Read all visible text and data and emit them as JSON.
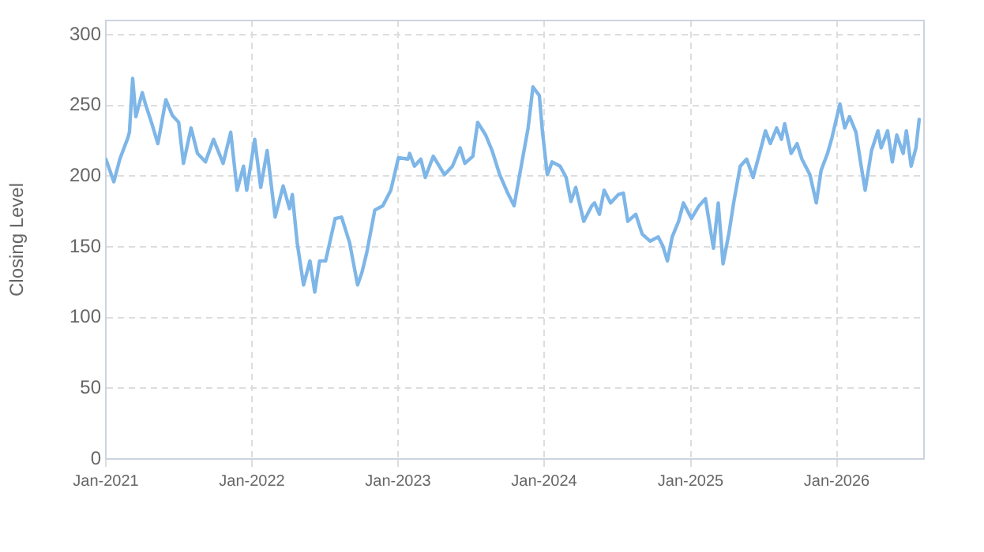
{
  "chart_data": {
    "type": "line",
    "ylabel": "Closing Level",
    "x": [
      "2021-01-01",
      "2021-01-21",
      "2021-02-05",
      "2021-02-25",
      "2021-03-01",
      "2021-03-09",
      "2021-03-17",
      "2021-04-02",
      "2021-04-10",
      "2021-04-26",
      "2021-05-11",
      "2021-05-31",
      "2021-06-16",
      "2021-07-02",
      "2021-07-14",
      "2021-08-02",
      "2021-08-18",
      "2021-09-07",
      "2021-09-27",
      "2021-10-21",
      "2021-11-09",
      "2021-11-25",
      "2021-12-11",
      "2021-12-19",
      "2022-01-08",
      "2022-01-23",
      "2022-02-08",
      "2022-02-28",
      "2022-03-20",
      "2022-04-05",
      "2022-04-12",
      "2022-04-24",
      "2022-05-10",
      "2022-05-26",
      "2022-06-07",
      "2022-06-19",
      "2022-07-04",
      "2022-07-28",
      "2022-08-13",
      "2022-09-02",
      "2022-09-22",
      "2022-10-03",
      "2022-10-15",
      "2022-11-04",
      "2022-11-24",
      "2022-12-14",
      "2023-01-02",
      "2023-01-26",
      "2023-01-30",
      "2023-02-11",
      "2023-02-27",
      "2023-03-10",
      "2023-03-30",
      "2023-04-27",
      "2023-05-17",
      "2023-06-05",
      "2023-06-17",
      "2023-07-07",
      "2023-07-19",
      "2023-08-08",
      "2023-08-24",
      "2023-09-12",
      "2023-10-02",
      "2023-10-18",
      "2023-10-30",
      "2023-11-22",
      "2023-12-04",
      "2023-12-20",
      "2023-12-28",
      "2024-01-09",
      "2024-01-21",
      "2024-02-10",
      "2024-02-25",
      "2024-03-08",
      "2024-03-20",
      "2024-04-09",
      "2024-04-29",
      "2024-05-06",
      "2024-05-18",
      "2024-05-30",
      "2024-06-15",
      "2024-07-05",
      "2024-07-17",
      "2024-07-28",
      "2024-08-17",
      "2024-09-02",
      "2024-09-22",
      "2024-10-12",
      "2024-10-23",
      "2024-11-04",
      "2024-11-16",
      "2024-12-02",
      "2024-12-14",
      "2025-01-03",
      "2025-01-22",
      "2025-02-07",
      "2025-02-27",
      "2025-03-11",
      "2025-03-23",
      "2025-04-07",
      "2025-04-19",
      "2025-05-05",
      "2025-05-21",
      "2025-06-06",
      "2025-06-26",
      "2025-07-07",
      "2025-07-19",
      "2025-08-04",
      "2025-08-16",
      "2025-08-24",
      "2025-09-09",
      "2025-09-24",
      "2025-10-06",
      "2025-10-26",
      "2025-11-11",
      "2025-11-23",
      "2025-12-09",
      "2025-12-20",
      "2026-01-09",
      "2026-01-21",
      "2026-02-02",
      "2026-02-18",
      "2026-03-02",
      "2026-03-13",
      "2026-03-29",
      "2026-04-14",
      "2026-04-22",
      "2026-05-08",
      "2026-05-20",
      "2026-05-31",
      "2026-06-16",
      "2026-06-24",
      "2026-07-06",
      "2026-07-18",
      "2026-07-26"
    ],
    "series": [
      {
        "color": "#7eb6e8",
        "values": [
          212,
          196,
          212,
          227,
          231,
          269,
          242,
          259,
          251,
          237,
          223,
          254,
          243,
          238,
          209,
          234,
          216,
          210,
          226,
          209,
          231,
          190,
          207,
          190,
          226,
          192,
          218,
          171,
          193,
          177,
          187,
          153,
          123,
          140,
          118,
          140,
          140,
          170,
          171,
          153,
          123,
          132,
          146,
          176,
          179,
          190,
          213,
          212,
          216,
          207,
          212,
          199,
          214,
          201,
          207,
          220,
          209,
          214,
          238,
          229,
          218,
          201,
          188,
          179,
          198,
          234,
          263,
          257,
          231,
          201,
          210,
          207,
          199,
          182,
          192,
          168,
          179,
          181,
          173,
          190,
          181,
          187,
          188,
          168,
          173,
          159,
          154,
          157,
          151,
          140,
          157,
          168,
          181,
          170,
          179,
          184,
          149,
          181,
          138,
          160,
          182,
          207,
          212,
          199,
          220,
          232,
          223,
          234,
          226,
          237,
          216,
          223,
          212,
          201,
          181,
          204,
          216,
          227,
          251,
          234,
          242,
          231,
          209,
          190,
          218,
          232,
          220,
          232,
          210,
          229,
          216,
          232,
          207,
          220,
          240
        ]
      }
    ],
    "xlim": [
      "2021-01-01",
      "2026-08-07"
    ],
    "xticks": [
      {
        "value": "2021-01-01",
        "label": "Jan-2021"
      },
      {
        "value": "2022-01-01",
        "label": "Jan-2022"
      },
      {
        "value": "2023-01-01",
        "label": "Jan-2023"
      },
      {
        "value": "2024-01-01",
        "label": "Jan-2024"
      },
      {
        "value": "2025-01-01",
        "label": "Jan-2025"
      },
      {
        "value": "2026-01-01",
        "label": "Jan-2026"
      }
    ],
    "ylim": [
      0,
      310
    ],
    "yticks": [
      0,
      50,
      100,
      150,
      200,
      250,
      300
    ],
    "grid": true,
    "legend": false,
    "marker": "none",
    "line_style": "solid"
  }
}
